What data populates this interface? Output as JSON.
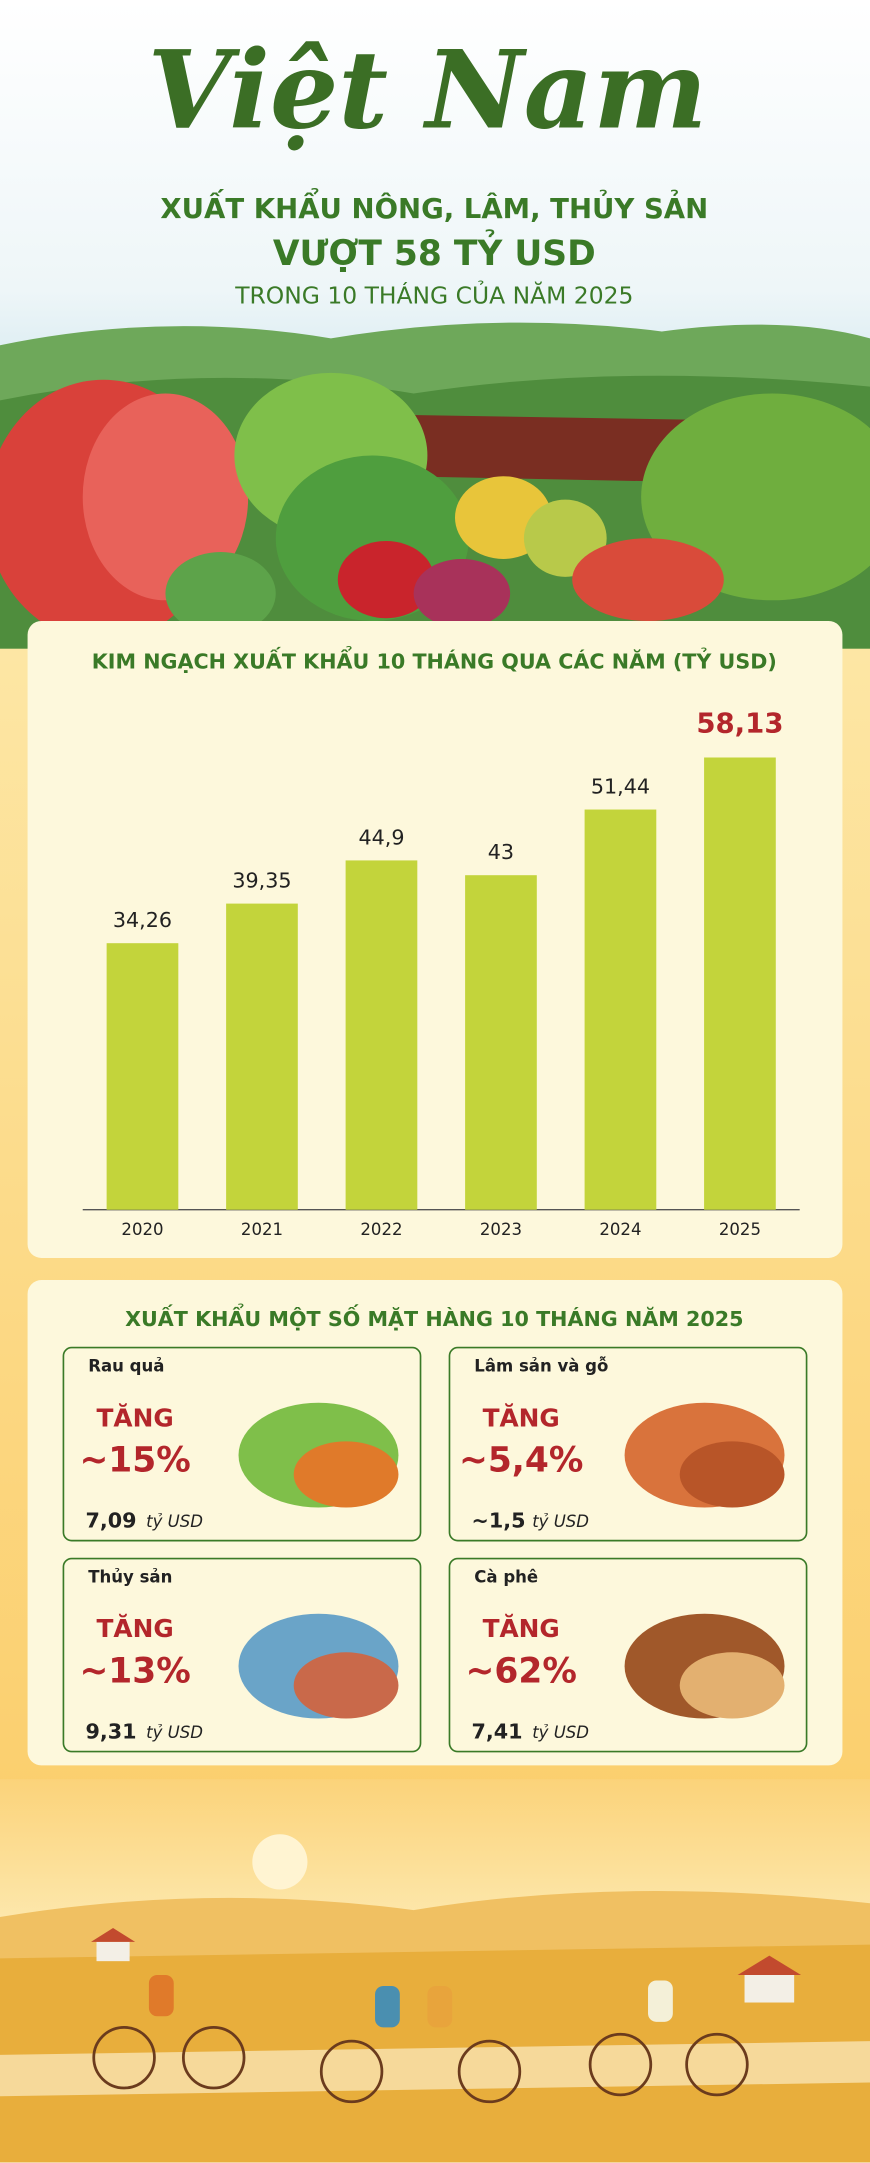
{
  "header": {
    "title": "Việt Nam",
    "lines": [
      "XUẤT KHẨU NÔNG, LÂM, THỦY SẢN",
      "VƯỢT 58 TỶ USD",
      "TRONG 10 THÁNG CỦA NĂM 2025"
    ]
  },
  "chart_data": {
    "type": "bar",
    "title": "KIM NGẠCH XUẤT KHẨU 10 THÁNG QUA CÁC NĂM (TỶ USD)",
    "categories": [
      "2020",
      "2021",
      "2022",
      "2023",
      "2024",
      "2025"
    ],
    "values": [
      34.26,
      39.35,
      44.9,
      43,
      51.44,
      58.13
    ],
    "value_labels": [
      "34,26",
      "39,35",
      "44,9",
      "43",
      "51,44",
      "58,13"
    ],
    "color": "#c3d43b"
  },
  "products": {
    "title": "XUẤT KHẨU MỘT SỐ MẶT HÀNG 10 THÁNG NĂM 2025",
    "items": [
      {
        "name": "Rau quả",
        "trend": "TĂNG",
        "change": "~15%",
        "value": "7,09",
        "unit": "tỷ USD"
      },
      {
        "name": "Lâm sản và gỗ",
        "trend": "TĂNG",
        "change": "~5,4%",
        "value": "~1,5",
        "unit": "tỷ USD"
      },
      {
        "name": "Thủy sản",
        "trend": "TĂNG",
        "change": "~13%",
        "value": "9,31",
        "unit": "tỷ USD"
      },
      {
        "name": "Cà phê",
        "trend": "TĂNG",
        "change": "~62%",
        "value": "7,41",
        "unit": "tỷ USD"
      }
    ]
  }
}
